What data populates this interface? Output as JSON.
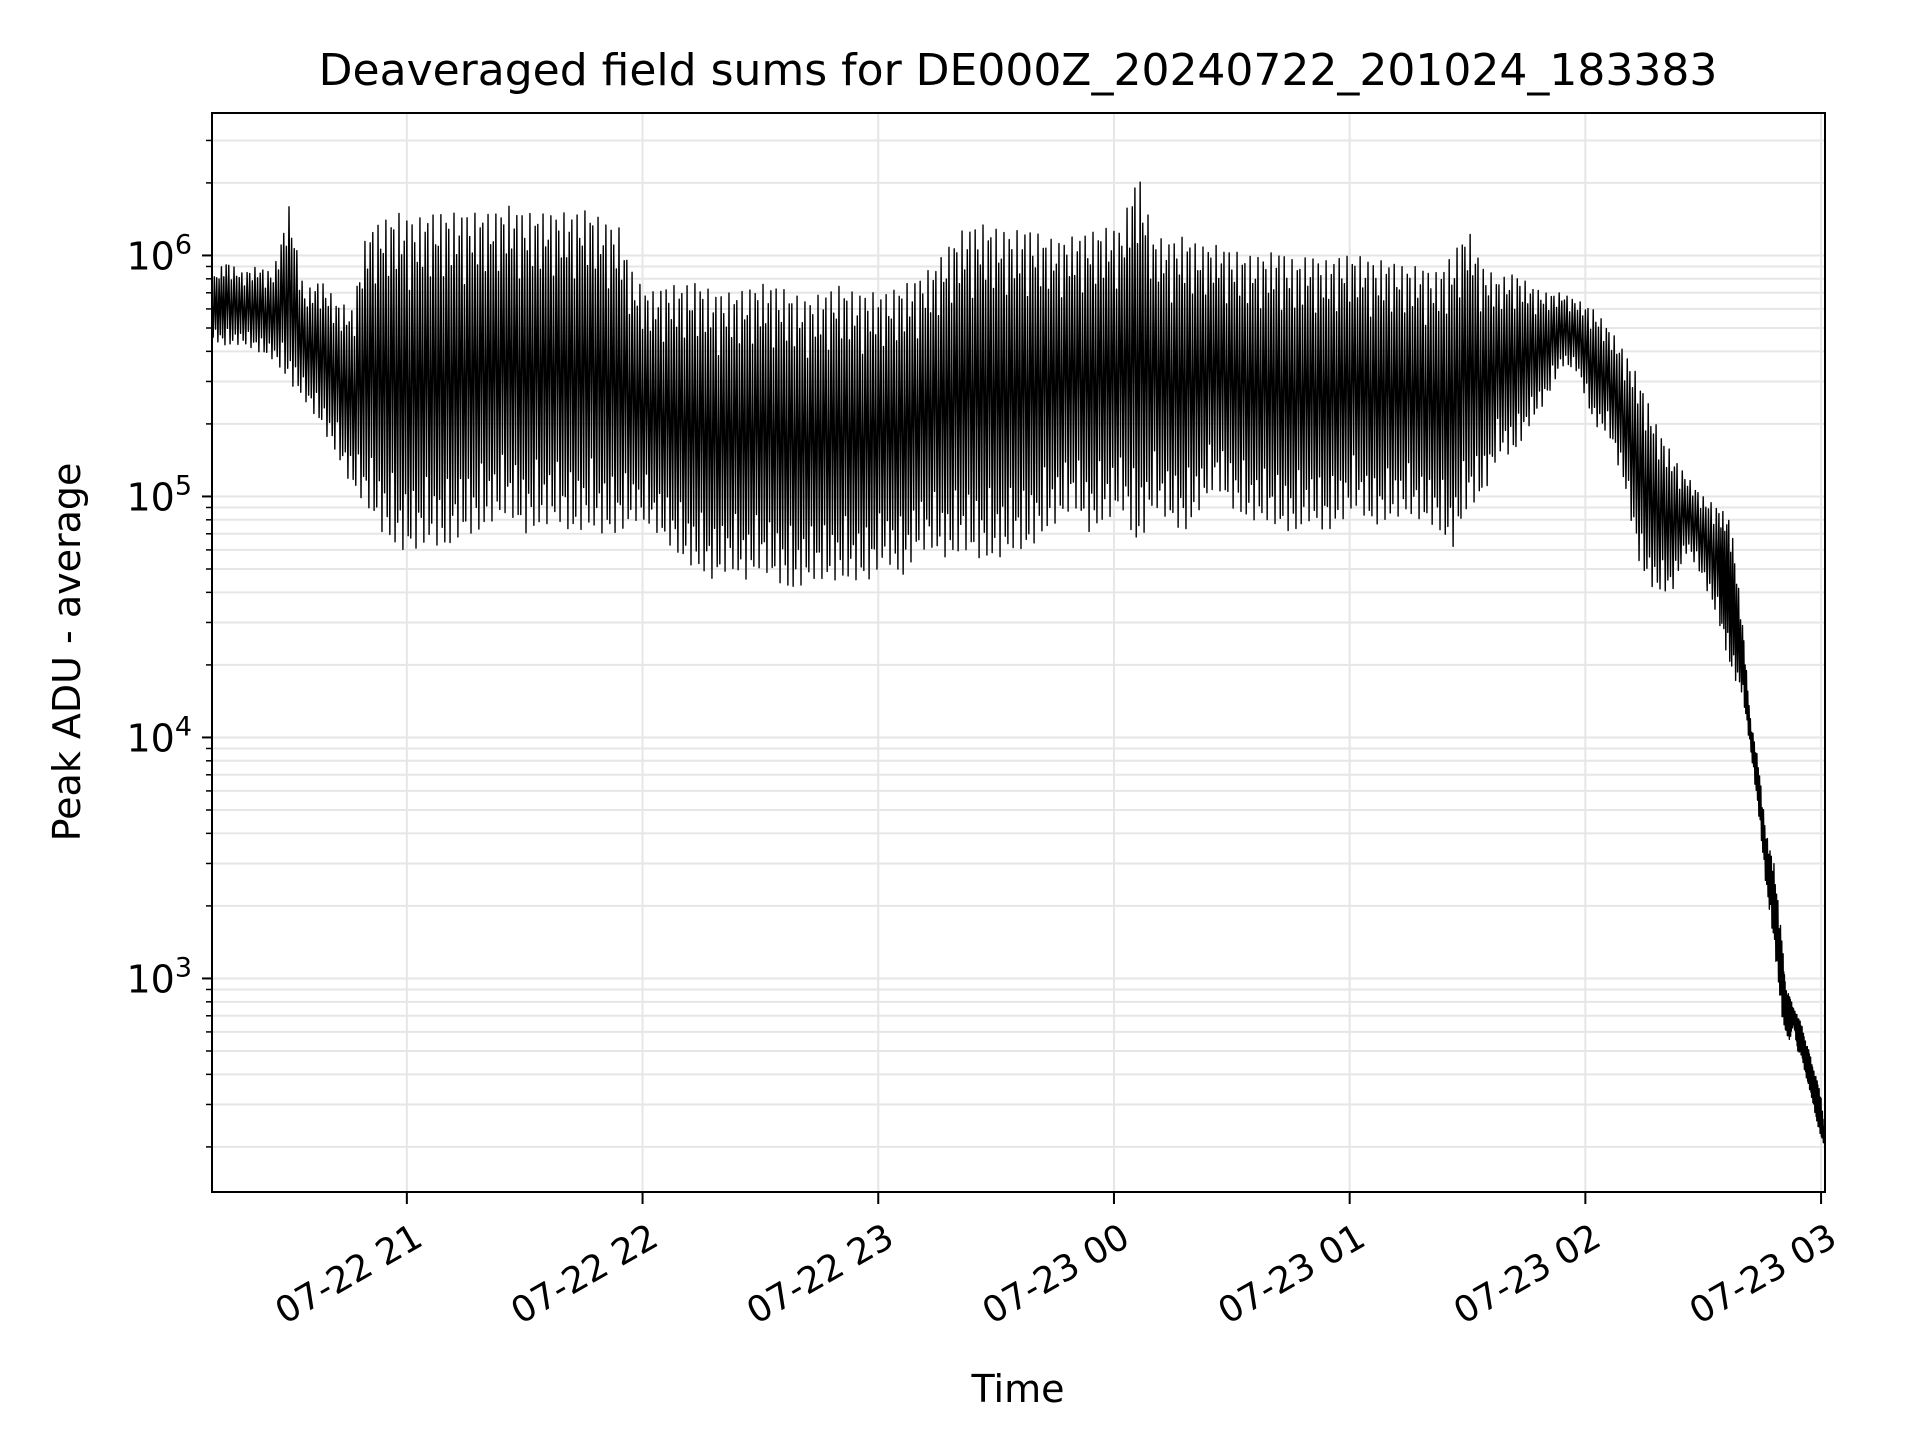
{
  "chart_data": {
    "type": "line",
    "title": "Deaveraged field sums for DE000Z_20240722_201024_183383",
    "xlabel": "Time",
    "ylabel": "Peak ADU - average",
    "yscale": "log",
    "xlim": [
      "2024-07-22T20:10:24",
      "2024-07-23T03:01:00"
    ],
    "ylim": [
      130,
      3900000
    ],
    "grid": true,
    "line_color": "#000000",
    "grid_color": "#e6e6e6",
    "x_ticks": [
      {
        "t": "2024-07-22T21:00:00",
        "label": "07-22 21"
      },
      {
        "t": "2024-07-22T22:00:00",
        "label": "07-22 22"
      },
      {
        "t": "2024-07-22T23:00:00",
        "label": "07-22 23"
      },
      {
        "t": "2024-07-23T00:00:00",
        "label": "07-23 00"
      },
      {
        "t": "2024-07-23T01:00:00",
        "label": "07-23 01"
      },
      {
        "t": "2024-07-23T02:00:00",
        "label": "07-23 02"
      },
      {
        "t": "2024-07-23T03:00:00",
        "label": "07-23 03"
      }
    ],
    "y_ticks": [
      {
        "value": 1000,
        "base": "10",
        "exp": "3"
      },
      {
        "value": 10000,
        "base": "10",
        "exp": "4"
      },
      {
        "value": 100000,
        "base": "10",
        "exp": "5"
      },
      {
        "value": 1000000,
        "base": "10",
        "exp": "6"
      }
    ],
    "series": [
      {
        "x": [
          "2024-07-22T20:10:24",
          "2024-07-22T20:14:00",
          "2024-07-22T20:18:00",
          "2024-07-22T20:22:00",
          "2024-07-22T20:26:00",
          "2024-07-22T20:30:00",
          "2024-07-22T20:34:00",
          "2024-07-22T20:38:00",
          "2024-07-22T20:42:00",
          "2024-07-22T20:46:00",
          "2024-07-22T20:50:00",
          "2024-07-22T20:54:00",
          "2024-07-22T20:58:00",
          "2024-07-22T21:02:00",
          "2024-07-22T21:06:00",
          "2024-07-22T21:10:00",
          "2024-07-22T21:14:00",
          "2024-07-22T21:18:00",
          "2024-07-22T21:22:00",
          "2024-07-22T21:26:00",
          "2024-07-22T21:30:00",
          "2024-07-22T21:34:00",
          "2024-07-22T21:38:00",
          "2024-07-22T21:42:00",
          "2024-07-22T21:46:00",
          "2024-07-22T21:50:00",
          "2024-07-22T21:54:00",
          "2024-07-22T21:58:00",
          "2024-07-22T22:02:00",
          "2024-07-22T22:06:00",
          "2024-07-22T22:10:00",
          "2024-07-22T22:14:00",
          "2024-07-22T22:18:00",
          "2024-07-22T22:22:00",
          "2024-07-22T22:26:00",
          "2024-07-22T22:30:00",
          "2024-07-22T22:34:00",
          "2024-07-22T22:38:00",
          "2024-07-22T22:42:00",
          "2024-07-22T22:46:00",
          "2024-07-22T22:50:00",
          "2024-07-22T22:54:00",
          "2024-07-22T22:58:00",
          "2024-07-22T23:02:00",
          "2024-07-22T23:06:00",
          "2024-07-22T23:10:00",
          "2024-07-22T23:14:00",
          "2024-07-22T23:18:00",
          "2024-07-22T23:22:00",
          "2024-07-22T23:26:00",
          "2024-07-22T23:30:00",
          "2024-07-22T23:34:00",
          "2024-07-22T23:38:00",
          "2024-07-22T23:42:00",
          "2024-07-22T23:46:00",
          "2024-07-22T23:50:00",
          "2024-07-22T23:54:00",
          "2024-07-22T23:58:00",
          "2024-07-23T00:02:00",
          "2024-07-23T00:06:00",
          "2024-07-23T00:10:00",
          "2024-07-23T00:14:00",
          "2024-07-23T00:18:00",
          "2024-07-23T00:22:00",
          "2024-07-23T00:26:00",
          "2024-07-23T00:30:00",
          "2024-07-23T00:34:00",
          "2024-07-23T00:38:00",
          "2024-07-23T00:42:00",
          "2024-07-23T00:46:00",
          "2024-07-23T00:50:00",
          "2024-07-23T00:54:00",
          "2024-07-23T00:58:00",
          "2024-07-23T01:02:00",
          "2024-07-23T01:06:00",
          "2024-07-23T01:10:00",
          "2024-07-23T01:14:00",
          "2024-07-23T01:18:00",
          "2024-07-23T01:22:00",
          "2024-07-23T01:26:00",
          "2024-07-23T01:30:00",
          "2024-07-23T01:34:00",
          "2024-07-23T01:38:00",
          "2024-07-23T01:42:00",
          "2024-07-23T01:46:00",
          "2024-07-23T01:50:00",
          "2024-07-23T01:54:00",
          "2024-07-23T01:58:00",
          "2024-07-23T02:02:00",
          "2024-07-23T02:06:00",
          "2024-07-23T02:10:00",
          "2024-07-23T02:14:00",
          "2024-07-23T02:18:00",
          "2024-07-23T02:22:00",
          "2024-07-23T02:26:00",
          "2024-07-23T02:30:00",
          "2024-07-23T02:34:00",
          "2024-07-23T02:37:00",
          "2024-07-23T02:40:00",
          "2024-07-23T02:42:00",
          "2024-07-23T02:44:00",
          "2024-07-23T02:46:00",
          "2024-07-23T02:48:00",
          "2024-07-23T02:50:00",
          "2024-07-23T02:51:00",
          "2024-07-23T02:52:00",
          "2024-07-23T02:53:00",
          "2024-07-23T02:54:00",
          "2024-07-23T02:55:00",
          "2024-07-23T02:56:00",
          "2024-07-23T02:57:00",
          "2024-07-23T02:58:00",
          "2024-07-23T02:59:00",
          "2024-07-23T03:00:00",
          "2024-07-23T03:01:00"
        ],
        "low": [
          450000,
          420000,
          430000,
          400000,
          370000,
          300000,
          250000,
          200000,
          150000,
          110000,
          90000,
          70000,
          60000,
          60000,
          65000,
          60000,
          70000,
          70000,
          80000,
          85000,
          70000,
          75000,
          80000,
          70000,
          75000,
          70000,
          70000,
          80000,
          75000,
          65000,
          55000,
          50000,
          45000,
          50000,
          45000,
          50000,
          45000,
          40000,
          45000,
          45000,
          45000,
          45000,
          45000,
          55000,
          45000,
          60000,
          60000,
          55000,
          60000,
          55000,
          55000,
          60000,
          60000,
          70000,
          80000,
          90000,
          70000,
          80000,
          90000,
          60000,
          90000,
          80000,
          70000,
          90000,
          110000,
          90000,
          80000,
          80000,
          75000,
          70000,
          80000,
          70000,
          80000,
          90000,
          75000,
          80000,
          85000,
          80000,
          75000,
          60000,
          90000,
          100000,
          150000,
          150000,
          200000,
          250000,
          350000,
          330000,
          200000,
          180000,
          110000,
          50000,
          40000,
          40000,
          60000,
          45000,
          30000,
          19000,
          15000,
          9000,
          5000,
          2400,
          1400,
          700,
          600,
          550,
          650,
          500,
          480,
          400,
          350,
          300,
          250,
          220,
          200
        ],
        "high": [
          800000,
          950000,
          850000,
          900000,
          850000,
          1600000,
          700000,
          800000,
          650000,
          600000,
          1300000,
          1400000,
          1500000,
          1400000,
          1500000,
          1500000,
          1500000,
          1500000,
          1500000,
          1600000,
          1500000,
          1500000,
          1500000,
          1500000,
          1550000,
          1400000,
          1300000,
          800000,
          700000,
          750000,
          750000,
          780000,
          700000,
          700000,
          720000,
          760000,
          750000,
          700000,
          650000,
          700000,
          750000,
          700000,
          700000,
          700000,
          750000,
          800000,
          900000,
          1100000,
          1300000,
          1350000,
          1300000,
          1250000,
          1300000,
          1200000,
          1150000,
          1200000,
          1250000,
          1300000,
          1300000,
          2300000,
          1200000,
          1150000,
          1200000,
          1100000,
          1100000,
          1050000,
          1000000,
          1000000,
          1050000,
          950000,
          1000000,
          950000,
          1000000,
          1000000,
          950000,
          950000,
          900000,
          900000,
          850000,
          1000000,
          1300000,
          900000,
          800000,
          850000,
          750000,
          700000,
          700000,
          650000,
          600000,
          500000,
          400000,
          300000,
          200000,
          150000,
          120000,
          100000,
          90000,
          80000,
          30000,
          12000,
          8000,
          4000,
          3000,
          1500,
          900,
          850,
          750,
          700,
          650,
          550,
          500,
          420,
          380,
          320,
          220
        ]
      }
    ]
  }
}
